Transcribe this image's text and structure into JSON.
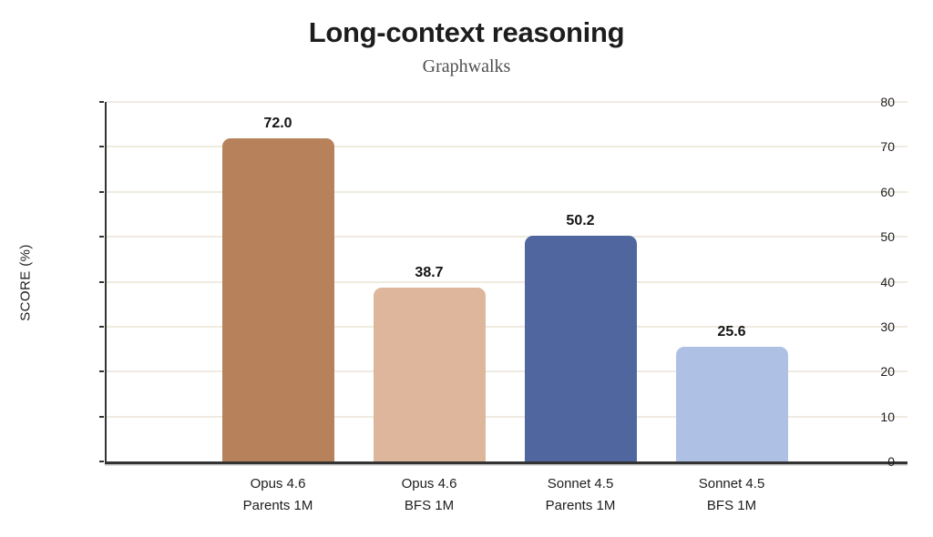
{
  "chart_data": {
    "type": "bar",
    "title": "Long-context reasoning",
    "subtitle": "Graphwalks",
    "ylabel": "SCORE (%)",
    "xlabel": "",
    "ylim": [
      0,
      80
    ],
    "yticks": [
      0,
      10,
      20,
      30,
      40,
      50,
      60,
      70,
      80
    ],
    "grid": "horizontal",
    "legend": "none",
    "background": "#ffffff",
    "categories": [
      [
        "Opus 4.6",
        "Parents 1M"
      ],
      [
        "Opus 4.6",
        "BFS 1M"
      ],
      [
        "Sonnet 4.5",
        "Parents 1M"
      ],
      [
        "Sonnet 4.5",
        "BFS 1M"
      ]
    ],
    "values": [
      72.0,
      38.7,
      50.2,
      25.6
    ],
    "value_labels": [
      "72.0",
      "38.7",
      "50.2",
      "25.6"
    ],
    "bar_colors": [
      "#b7815b",
      "#deb69c",
      "#50669e",
      "#aec1e5"
    ],
    "colors": {
      "axis": "#333333",
      "gridline": "#efebe1",
      "text": "#1d1d1d",
      "subtitle": "#4f4f4f"
    }
  }
}
